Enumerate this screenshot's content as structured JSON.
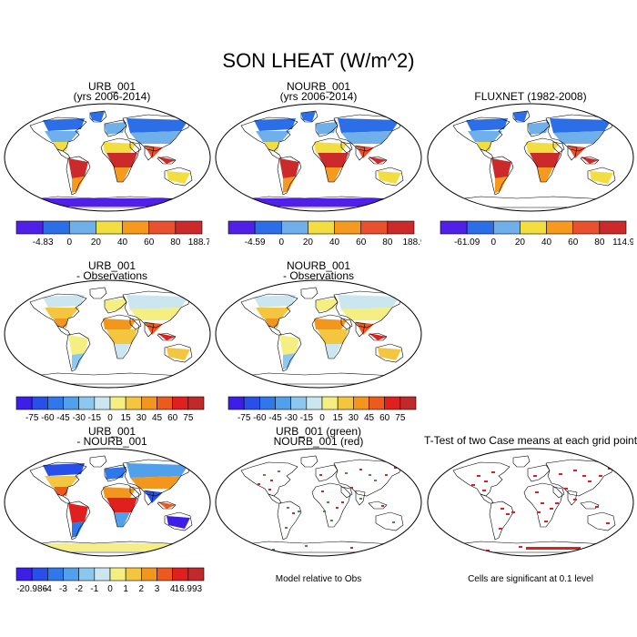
{
  "main_title": "SON LHEAT (W/m^2)",
  "panels": [
    {
      "title_line1": "URB_001",
      "title_line2": "(yrs 2006-2014)",
      "style": "abs",
      "colorbar": {
        "labels": [
          "-4.83",
          "0",
          "20",
          "40",
          "60",
          "80",
          "188.73"
        ],
        "colors": [
          "#5020e8",
          "#2b6ee8",
          "#70b0ea",
          "#f2de40",
          "#f59a1e",
          "#e8502e",
          "#cc2a2a"
        ]
      }
    },
    {
      "title_line1": "NOURB_001",
      "title_line2": "(yrs 2006-2014)",
      "style": "abs",
      "colorbar": {
        "labels": [
          "-4.59",
          "0",
          "20",
          "40",
          "60",
          "80",
          "188.9"
        ],
        "colors": [
          "#5020e8",
          "#2b6ee8",
          "#70b0ea",
          "#f2de40",
          "#f59a1e",
          "#e8502e",
          "#cc2a2a"
        ]
      }
    },
    {
      "title_line1": "FLUXNET (1982-2008)",
      "title_line2": "",
      "style": "obs",
      "colorbar": {
        "labels": [
          "-61.09",
          "0",
          "20",
          "40",
          "60",
          "80",
          "114.92"
        ],
        "colors": [
          "#5020e8",
          "#2b6ee8",
          "#70b0ea",
          "#f2de40",
          "#f59a1e",
          "#e8502e",
          "#cc2a2a"
        ]
      }
    },
    {
      "title_line1": "URB_001",
      "title_line2": "- Observations",
      "style": "diff",
      "colorbar": {
        "labels": [
          "-75",
          "-60",
          "-45",
          "-30",
          "-15",
          "0",
          "15",
          "30",
          "45",
          "60",
          "75"
        ],
        "colors": [
          "#3c1ee6",
          "#2850e8",
          "#3078ea",
          "#50a0ec",
          "#8cc8ee",
          "#cce6f0",
          "#f4ef80",
          "#f4c640",
          "#f2961e",
          "#ec5a1e",
          "#e0201e",
          "#c02a2a"
        ]
      }
    },
    {
      "title_line1": "NOURB_001",
      "title_line2": "- Observations",
      "style": "diff",
      "colorbar": {
        "labels": [
          "-75",
          "-60",
          "-45",
          "-30",
          "-15",
          "0",
          "15",
          "30",
          "45",
          "60",
          "75"
        ],
        "colors": [
          "#3c1ee6",
          "#2850e8",
          "#3078ea",
          "#50a0ec",
          "#8cc8ee",
          "#cce6f0",
          "#f4ef80",
          "#f4c640",
          "#f2961e",
          "#ec5a1e",
          "#e0201e",
          "#c02a2a"
        ]
      }
    },
    {
      "title_line1": "URB_001",
      "title_line2": "- NOURB_001",
      "style": "diff2",
      "colorbar": {
        "labels": [
          "-20.986",
          "-4",
          "-3",
          "-2",
          "-1",
          "0",
          "1",
          "2",
          "3",
          "4",
          "16.993"
        ],
        "colors": [
          "#3c1ee6",
          "#2850e8",
          "#3078ea",
          "#50a0ec",
          "#8cc8ee",
          "#cce6f0",
          "#f4ef80",
          "#f4c640",
          "#f2961e",
          "#ec5a1e",
          "#e0201e",
          "#c02a2a"
        ]
      }
    },
    {
      "title_line1": "URB_001 (green)",
      "title_line2": "NOURB_001 (red)",
      "style": "dots2",
      "note": "Model relative to Obs"
    },
    {
      "title_line1": "T-Test of two Case means at each grid point",
      "title_line2": "",
      "style": "ttest",
      "note": "Cells are significant at 0.1 level"
    }
  ]
}
